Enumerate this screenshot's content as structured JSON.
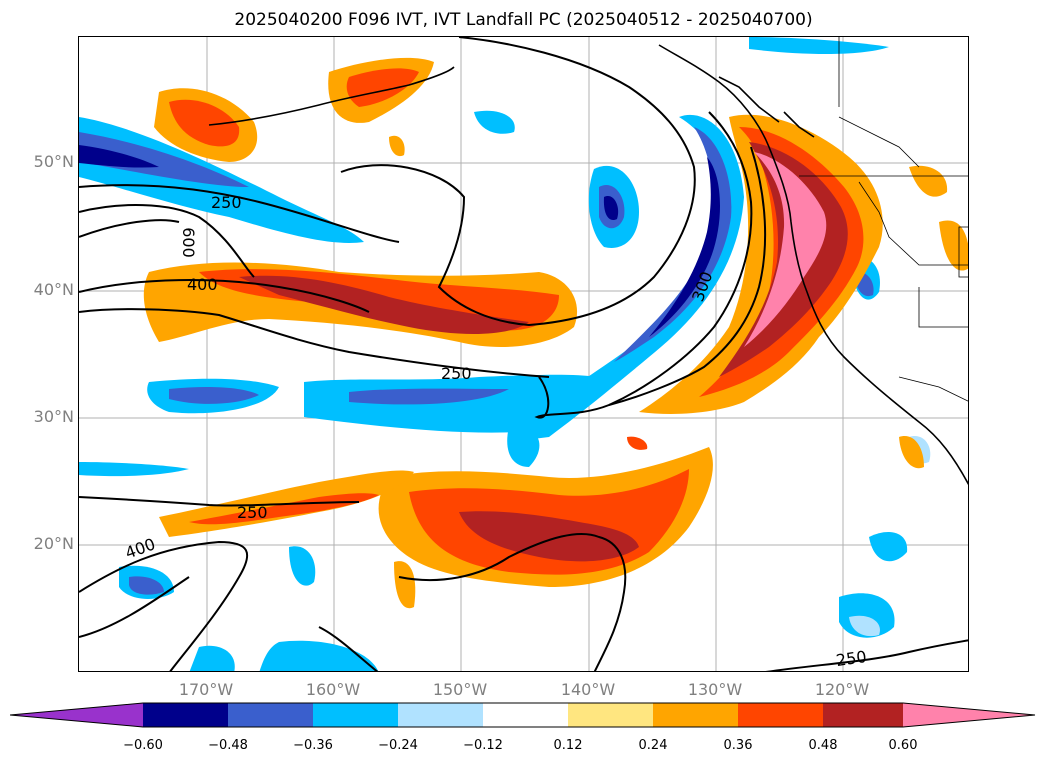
{
  "title": "2025040200 F096 IVT, IVT Landfall PC (2025040512 - 2025040700)",
  "lat_labels": [
    "50°N",
    "40°N",
    "30°N",
    "20°N"
  ],
  "lon_labels": [
    "170°W",
    "160°W",
    "150°W",
    "140°W",
    "130°W",
    "120°W"
  ],
  "contour_labels": [
    "250",
    "600",
    "400",
    "250",
    "300",
    "250",
    "400",
    "250"
  ],
  "colorbar": {
    "ticks": [
      "−0.60",
      "−0.48",
      "−0.36",
      "−0.24",
      "−0.12",
      "0.12",
      "0.24",
      "0.36",
      "0.48",
      "0.60"
    ],
    "colors": [
      "#9932cc",
      "#00008b",
      "#3a5fcd",
      "#00bfff",
      "#b0e2ff",
      "#ffffff",
      "#ffe680",
      "#ffa500",
      "#ff4500",
      "#b22222",
      "#ff82ab"
    ],
    "extend": "both"
  }
}
